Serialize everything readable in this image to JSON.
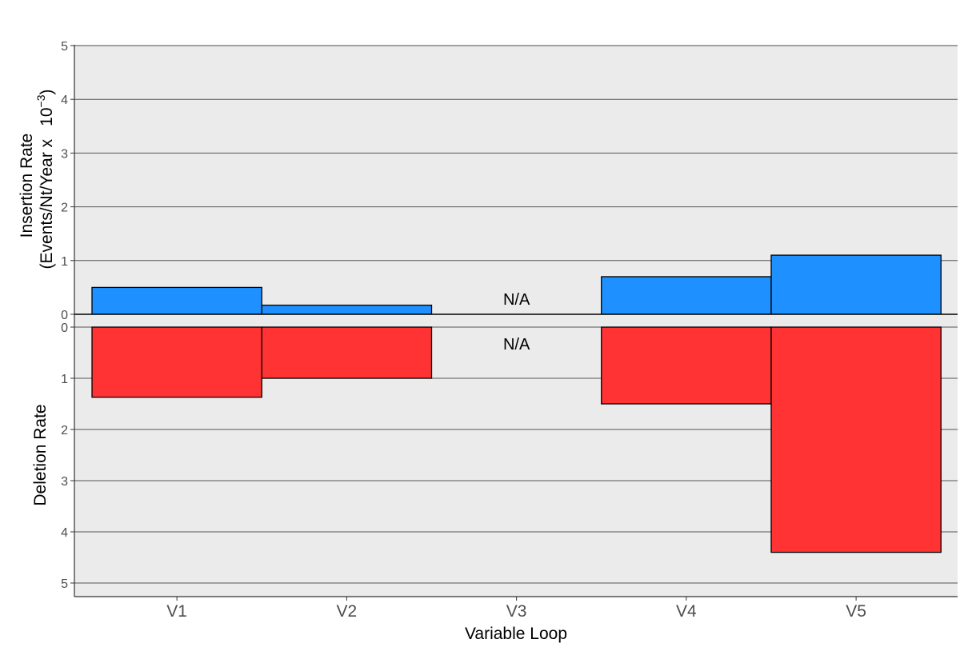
{
  "chart_data": [
    {
      "type": "bar",
      "panel": "top",
      "categories": [
        "V1",
        "V2",
        "V3",
        "V4",
        "V5"
      ],
      "values": [
        0.5,
        0.17,
        null,
        0.7,
        1.1
      ],
      "ylabel_lines": [
        "Insertion Rate",
        "(Events/Nt/Year x"
      ],
      "ylabel_unit_base": "10",
      "ylabel_unit_exp": "−3",
      "ylabel_close": ")",
      "yticks": [
        "0",
        "1",
        "2",
        "3",
        "4",
        "5"
      ],
      "ylim": [
        0,
        5
      ],
      "bar_color": "#1E90FF",
      "missing_label": "N/A",
      "missing_category": "V3",
      "grid": true
    },
    {
      "type": "bar",
      "panel": "bottom",
      "orientation": "downward",
      "categories": [
        "V1",
        "V2",
        "V3",
        "V4",
        "V5"
      ],
      "values": [
        1.37,
        1.0,
        null,
        1.5,
        4.4
      ],
      "ylabel": "Deletion Rate",
      "yticks": [
        "0",
        "1",
        "2",
        "3",
        "4",
        "5"
      ],
      "ylim": [
        0,
        5
      ],
      "bar_color": "#FF3333",
      "missing_label": "N/A",
      "missing_category": "V3",
      "xlabel": "Variable Loop",
      "grid": true
    }
  ],
  "colors": {
    "panel_background": "#EBEBEB",
    "grid": "#555555",
    "bar_outline": "#000000"
  }
}
